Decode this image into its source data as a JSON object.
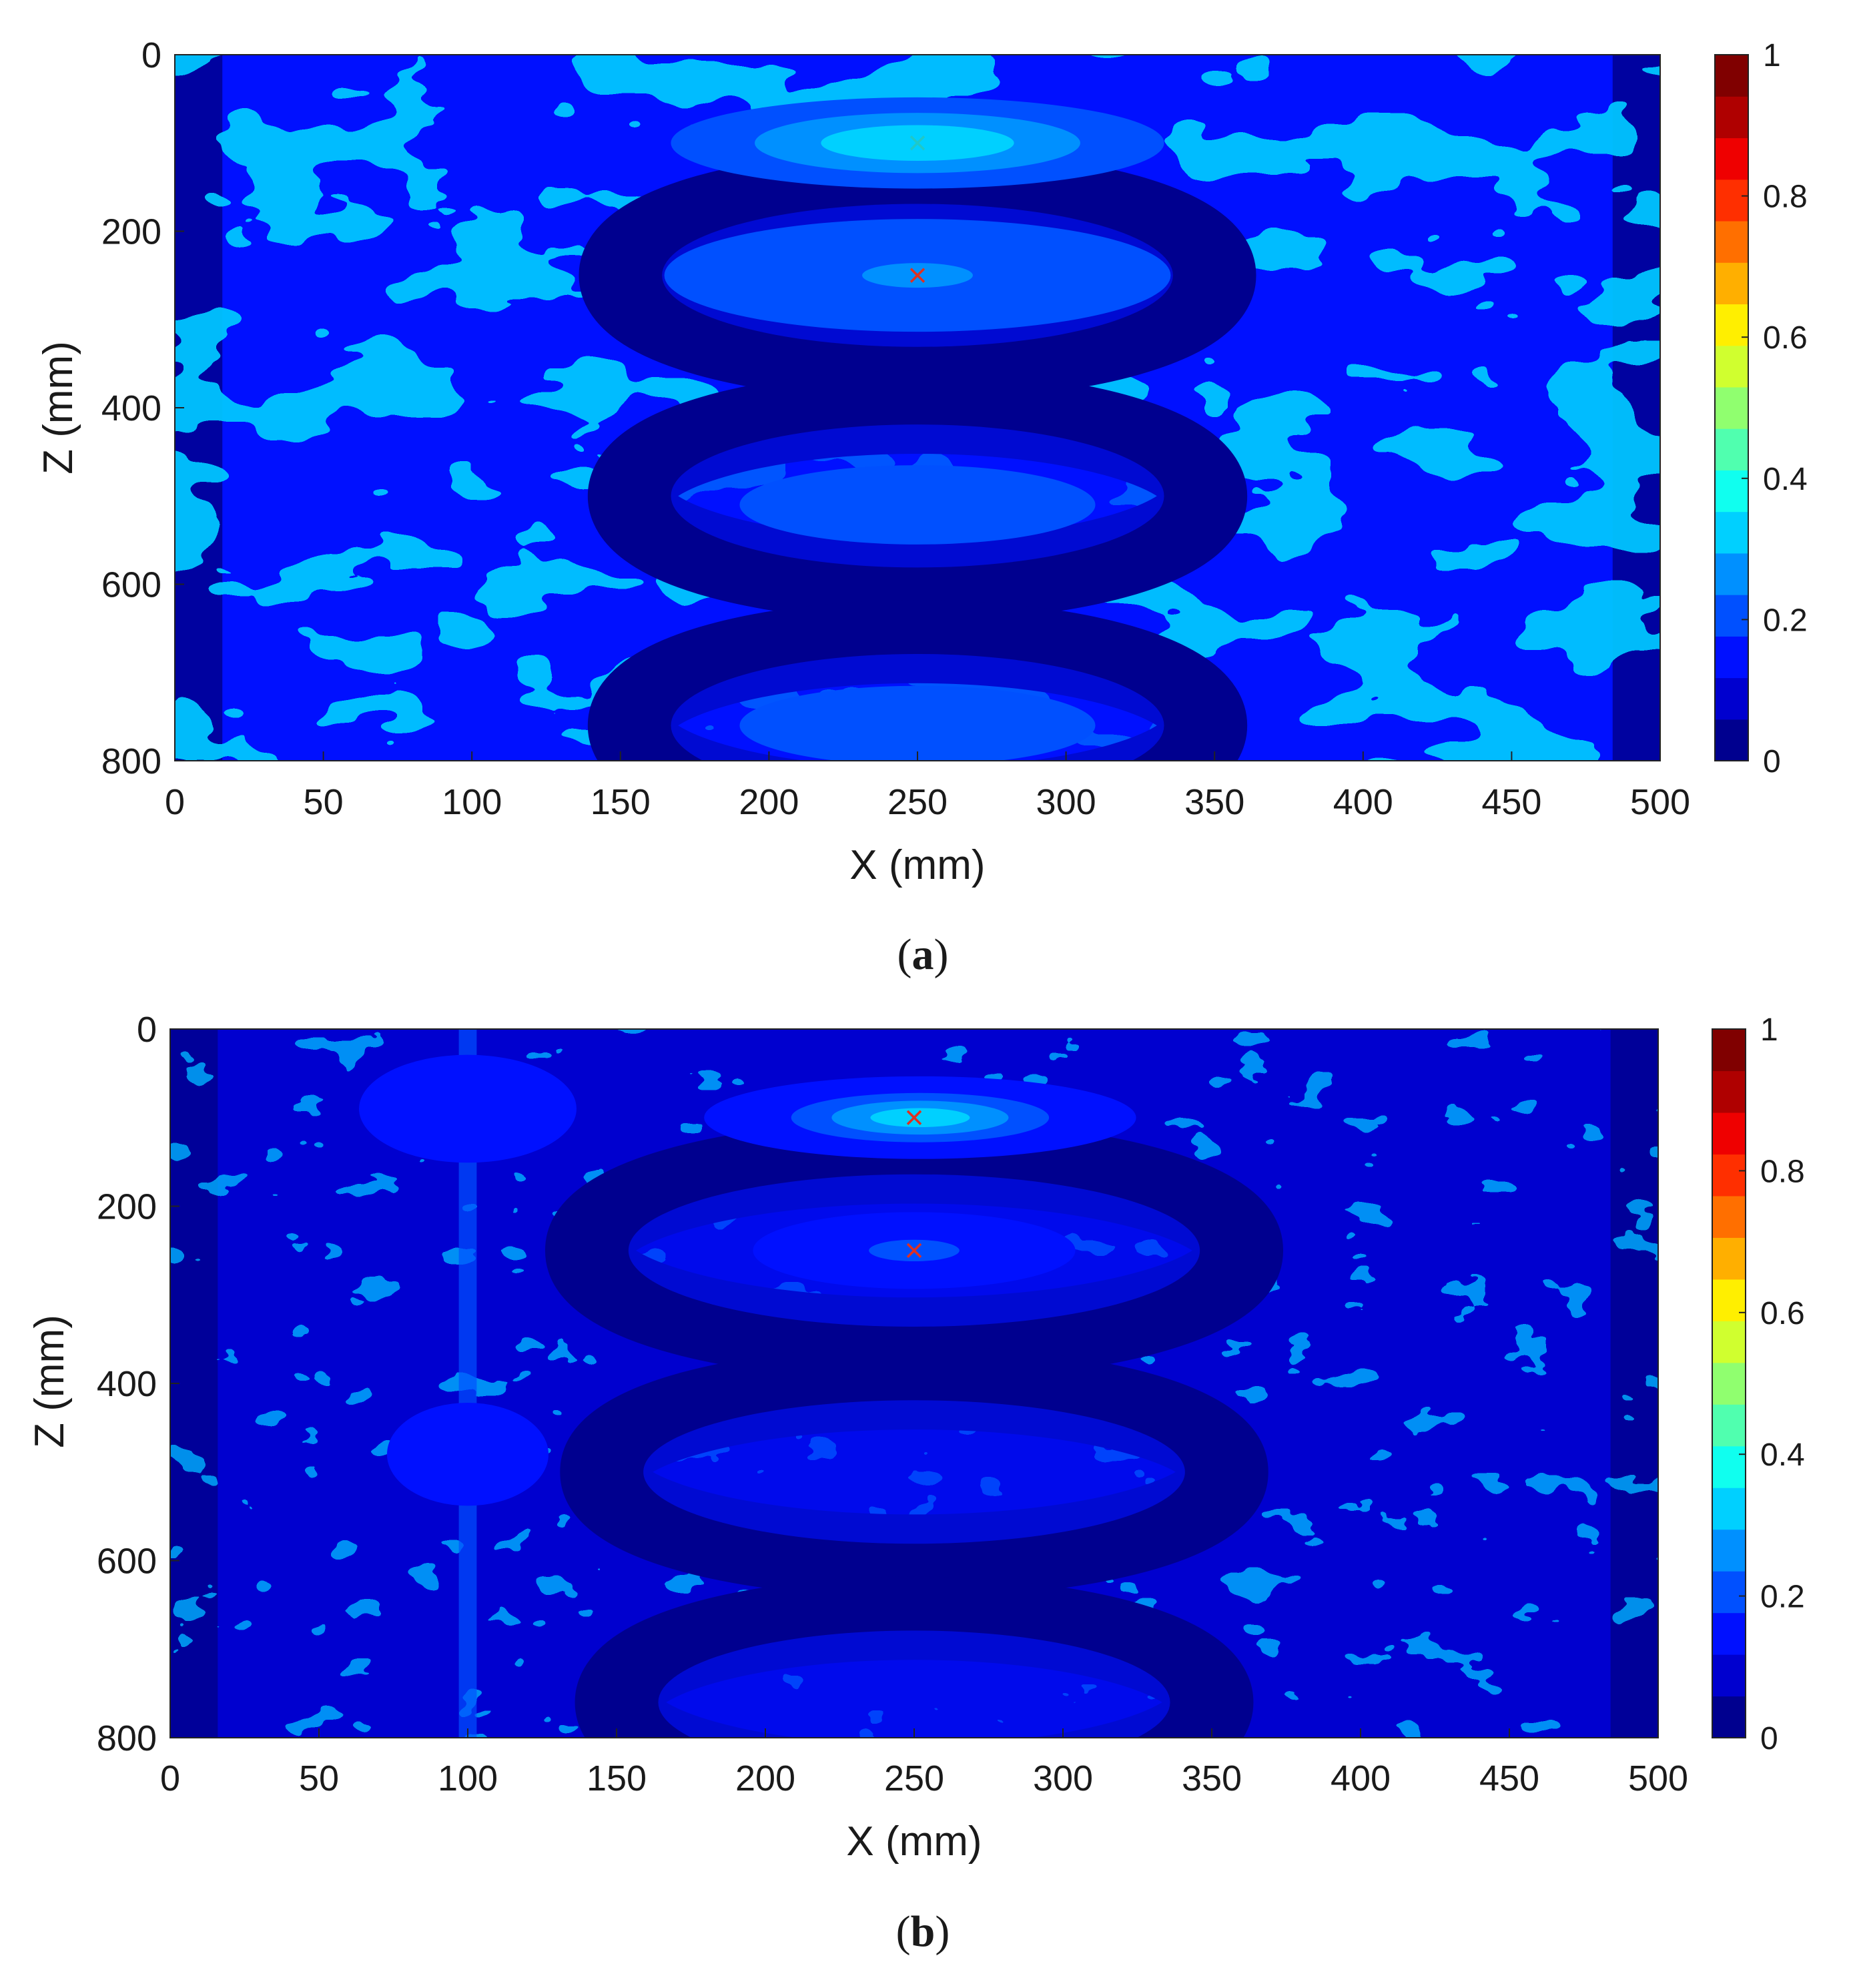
{
  "figure": {
    "panels": [
      {
        "caption_open": "(",
        "caption_letter": "a",
        "caption_close": ")"
      },
      {
        "caption_open": "(",
        "caption_letter": "b",
        "caption_close": ")"
      }
    ]
  },
  "colors": {
    "colormap": [
      "#00008f",
      "#0000cf",
      "#0010ff",
      "#0050ff",
      "#0090ff",
      "#00d0ff",
      "#10ffef",
      "#50ffaf",
      "#90ff6f",
      "#d0ff2f",
      "#ffef00",
      "#ffaf00",
      "#ff6f00",
      "#ff2f00",
      "#ef0000",
      "#af0000",
      "#800000"
    ],
    "marker_cyan": "#20c8c8",
    "marker_red": "#e03020"
  },
  "chart_data": [
    {
      "type": "heatmap",
      "panel": "a",
      "xlabel": "X (mm)",
      "ylabel": "Z (mm)",
      "xlim": [
        0,
        500
      ],
      "ylim": [
        800,
        0
      ],
      "xticks": [
        0,
        50,
        100,
        150,
        200,
        250,
        300,
        350,
        400,
        450,
        500
      ],
      "yticks": [
        0,
        200,
        400,
        600,
        800
      ],
      "colorbar": {
        "range": [
          0,
          1
        ],
        "ticks": [
          "0",
          "0.2",
          "0.4",
          "0.6",
          "0.8",
          "1"
        ],
        "levels": 17
      },
      "background_level": 0.14,
      "rings": [
        {
          "cx": 250,
          "cz": 250,
          "rx": 100,
          "rz": 95,
          "width": 28,
          "level": 0.04
        },
        {
          "cx": 250,
          "cz": 500,
          "rx": 97,
          "rz": 95,
          "width": 28,
          "level": 0.04
        },
        {
          "cx": 250,
          "cz": 760,
          "rx": 97,
          "rz": 95,
          "width": 28,
          "level": 0.04
        }
      ],
      "blobs": [
        {
          "cx": 250,
          "cz": 100,
          "sx": 22,
          "sz": 14,
          "amp": 0.9
        },
        {
          "cx": 250,
          "cz": 100,
          "sx": 45,
          "sz": 28,
          "amp": 0.2
        },
        {
          "cx": 250,
          "cz": 245,
          "sx": 28,
          "sz": 20,
          "amp": 0.25
        },
        {
          "cx": 250,
          "cz": 250,
          "sx": 60,
          "sz": 45,
          "amp": 0.1
        },
        {
          "cx": 250,
          "cz": 510,
          "sx": 60,
          "sz": 45,
          "amp": 0.06
        },
        {
          "cx": 250,
          "cz": 760,
          "sx": 60,
          "sz": 45,
          "amp": 0.06
        }
      ],
      "markers": [
        {
          "x": 250,
          "z": 100,
          "color": "cyan"
        },
        {
          "x": 250,
          "z": 250,
          "color": "red"
        }
      ]
    },
    {
      "type": "heatmap",
      "panel": "b",
      "xlabel": "X (mm)",
      "ylabel": "Z (mm)",
      "xlim": [
        0,
        500
      ],
      "ylim": [
        800,
        0
      ],
      "xticks": [
        0,
        50,
        100,
        150,
        200,
        250,
        300,
        350,
        400,
        450,
        500
      ],
      "yticks": [
        0,
        200,
        400,
        600,
        800
      ],
      "colorbar": {
        "range": [
          0,
          1
        ],
        "ticks": [
          "0",
          "0.2",
          "0.4",
          "0.6",
          "0.8",
          "1"
        ],
        "levels": 17
      },
      "background_level": 0.11,
      "rings": [
        {
          "cx": 250,
          "cz": 250,
          "rx": 110,
          "rz": 100,
          "width": 28,
          "level": 0.04
        },
        {
          "cx": 250,
          "cz": 500,
          "rx": 105,
          "rz": 95,
          "width": 28,
          "level": 0.04
        },
        {
          "cx": 250,
          "cz": 760,
          "rx": 100,
          "rz": 95,
          "width": 28,
          "level": 0.04
        }
      ],
      "blobs": [
        {
          "cx": 252,
          "cz": 100,
          "sx": 28,
          "sz": 18,
          "amp": 0.22
        },
        {
          "cx": 250,
          "cz": 250,
          "sx": 25,
          "sz": 20,
          "amp": 0.08
        },
        {
          "cx": 100,
          "cz": 90,
          "sx": 18,
          "sz": 30,
          "amp": 0.06
        },
        {
          "cx": 100,
          "cz": 480,
          "sx": 14,
          "sz": 30,
          "amp": 0.05
        }
      ],
      "streak": {
        "x": 100,
        "width": 3,
        "amp": 0.07
      },
      "markers": [
        {
          "x": 250,
          "z": 100,
          "color": "red"
        },
        {
          "x": 250,
          "z": 250,
          "color": "red"
        }
      ]
    }
  ]
}
